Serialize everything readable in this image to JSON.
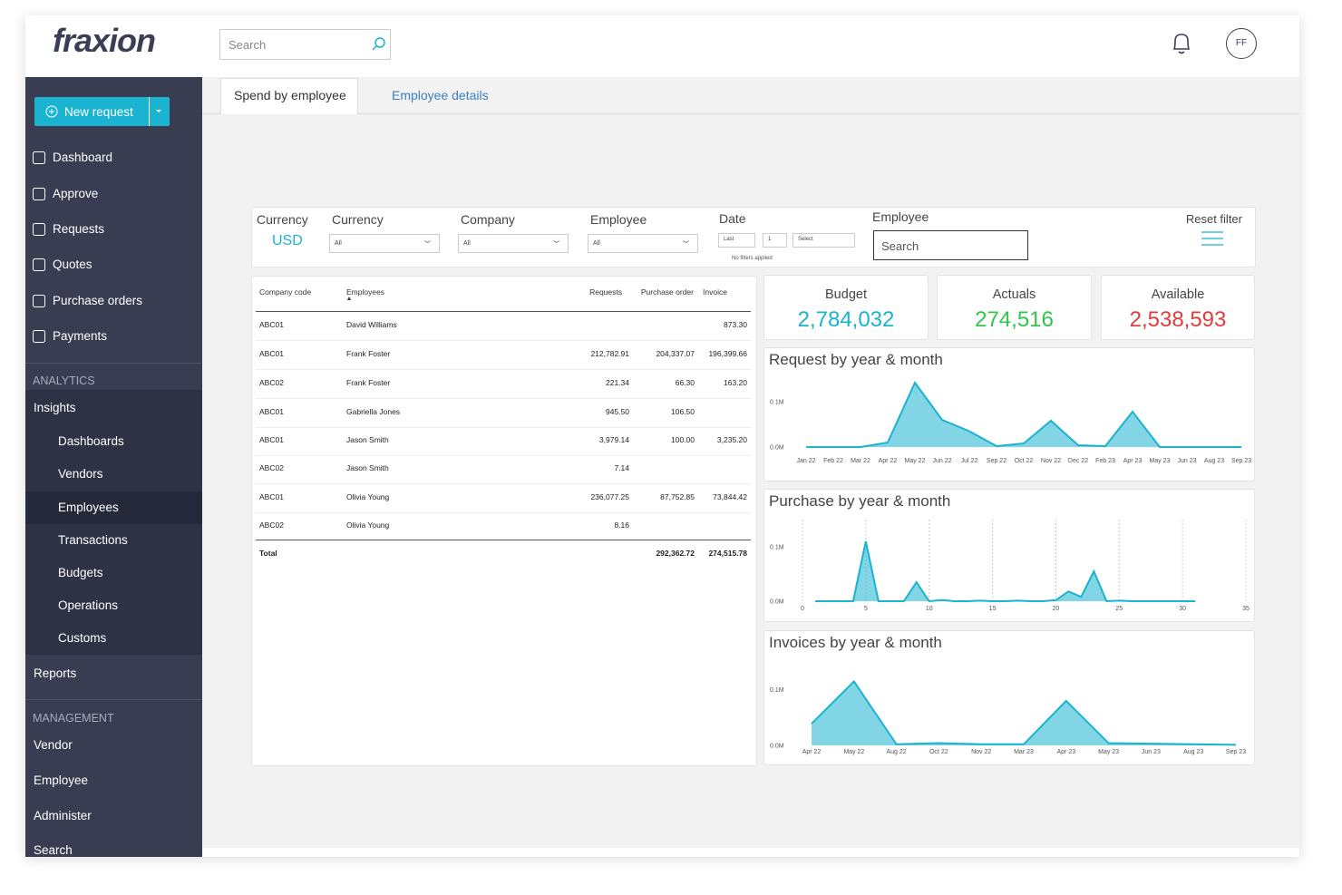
{
  "header": {
    "logo": "fraxion",
    "search": "Search",
    "avatar": "FF"
  },
  "sidebar": {
    "new_request": "New request",
    "main": [
      "Dashboard",
      "Approve",
      "Requests",
      "Quotes",
      "Purchase orders",
      "Payments"
    ],
    "analytics": "ANALYTICS",
    "insights": "Insights",
    "insights_items": [
      "Dashboards",
      "Vendors",
      "Employees",
      "Transactions",
      "Budgets",
      "Operations",
      "Customs"
    ],
    "reports": "Reports",
    "management": "MANAGEMENT",
    "management_items": [
      "Vendor",
      "Employee",
      "Administer",
      "Search"
    ]
  },
  "tabs": [
    "Spend by employee",
    "Employee details"
  ],
  "filters": {
    "currency_label": "Currency",
    "currency_value": "USD",
    "dropdowns": [
      {
        "label": "Currency",
        "value": "All"
      },
      {
        "label": "Company",
        "value": "All"
      },
      {
        "label": "Employee",
        "value": "All"
      }
    ],
    "date": {
      "label": "Date",
      "period": "Last",
      "count": "1",
      "unit": "Select",
      "note": "No filters applied"
    },
    "employee_search": {
      "label": "Employee",
      "placeholder": "Search"
    },
    "reset": "Reset filter"
  },
  "table": {
    "columns": [
      "Company code",
      "Employees",
      "Requests",
      "Purchase order",
      "Invoice"
    ],
    "rows": [
      [
        "ABC01",
        "David Williams",
        null,
        null,
        "873.30"
      ],
      [
        "ABC01",
        "Frank Foster",
        "212,782.91",
        "204,337.07",
        "196,399.66"
      ],
      [
        "ABC02",
        "Frank Foster",
        "221.34",
        "66.30",
        "163.20"
      ],
      [
        "ABC01",
        "Gabriella Jones",
        "945.50",
        "106.50",
        null
      ],
      [
        "ABC01",
        "Jason Smith",
        "3,979.14",
        "100.00",
        "3,235.20"
      ],
      [
        "ABC02",
        "Jason Smith",
        "7.14",
        null,
        null
      ],
      [
        "ABC01",
        "Olivia Young",
        "236,077.25",
        "87,752.85",
        "73,844.42"
      ],
      [
        "ABC02",
        "Olivia Young",
        "8.16",
        null,
        null
      ]
    ],
    "total": {
      "label": "Total",
      "purchase_order": "292,362.72",
      "invoice": "274,515.78"
    }
  },
  "kpis": [
    {
      "label": "Budget",
      "value": "2,784,032",
      "color": "#1ab3d0"
    },
    {
      "label": "Actuals",
      "value": "274,516",
      "color": "#2fc64a"
    },
    {
      "label": "Available",
      "value": "2,538,593",
      "color": "#e03c3c"
    }
  ],
  "chart_data": [
    {
      "type": "area",
      "title": "Request by year & month",
      "color": "#1ab3d0",
      "categories": [
        "Jan 22",
        "Feb 22",
        "Mar 22",
        "Apr 22",
        "May 22",
        "Jun 22",
        "Jul 22",
        "Sep 22",
        "Oct 22",
        "Nov 22",
        "Dec 22",
        "Feb 23",
        "Apr 23",
        "May 23",
        "Jun 23",
        "Aug 23",
        "Sep 23"
      ],
      "values": [
        0,
        0,
        0,
        10000,
        142000,
        60000,
        35000,
        2000,
        8000,
        58000,
        4000,
        2000,
        78000,
        0,
        0,
        0,
        0
      ],
      "ylim": [
        0,
        150000
      ],
      "yticks": [
        {
          "value": 0,
          "label": "0.0M"
        },
        {
          "value": 100000,
          "label": "0.1M"
        }
      ],
      "grid": false
    },
    {
      "type": "area",
      "title": "Purchase by year & month",
      "color": "#1ab3d0",
      "x": [
        1,
        2,
        3,
        4,
        5,
        6,
        7,
        8,
        9,
        10,
        11,
        12,
        13,
        14,
        15,
        16,
        17,
        18,
        19,
        20,
        21,
        22,
        23,
        24,
        25,
        26,
        27,
        28,
        29,
        30,
        31
      ],
      "values": [
        0,
        0,
        0,
        0,
        110000,
        0,
        0,
        0,
        35000,
        0,
        2000,
        0,
        0,
        1000,
        0,
        0,
        1000,
        0,
        0,
        2000,
        18000,
        8000,
        55000,
        0,
        1000,
        0,
        0,
        0,
        0,
        0,
        0
      ],
      "xlim": [
        0,
        35
      ],
      "xticks": [
        0,
        5,
        10,
        15,
        20,
        25,
        30,
        35
      ],
      "ylim": [
        0,
        150000
      ],
      "yticks": [
        {
          "value": 0,
          "label": "0.0M"
        },
        {
          "value": 100000,
          "label": "0.1M"
        }
      ],
      "grid": true
    },
    {
      "type": "area",
      "title": "Invoices by year & month",
      "color": "#1ab3d0",
      "categories": [
        "Apr 22",
        "May 22",
        "Aug 22",
        "Oct 22",
        "Nov 22",
        "Mar 23",
        "Apr 23",
        "May 23",
        "Jun 23",
        "Aug 23",
        "Sep 23"
      ],
      "values": [
        39000,
        115000,
        2000,
        4000,
        2000,
        2000,
        80000,
        4000,
        3000,
        2000,
        1000
      ],
      "ylim": [
        0,
        150000
      ],
      "yticks": [
        {
          "value": 0,
          "label": "0.0M"
        },
        {
          "value": 100000,
          "label": "0.1M"
        }
      ],
      "grid": false
    }
  ]
}
